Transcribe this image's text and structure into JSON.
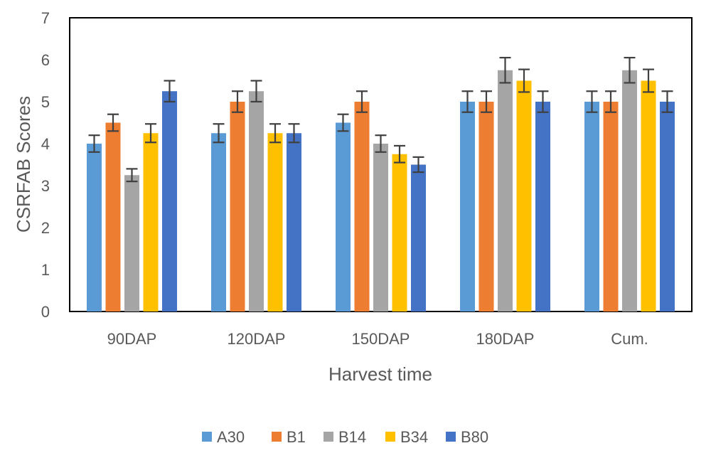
{
  "chart_data": {
    "type": "bar",
    "xlabel": "Harvest time",
    "ylabel": "CSRFAB Scores",
    "ylim": [
      0,
      7
    ],
    "yticks": [
      0,
      1,
      2,
      3,
      4,
      5,
      6,
      7
    ],
    "categories": [
      "90DAP",
      "120DAP",
      "150DAP",
      "180DAP",
      "Cum."
    ],
    "series": [
      {
        "name": "A30",
        "color": "#5B9BD5",
        "values": [
          4.0,
          4.25,
          4.5,
          5.0,
          5.0
        ],
        "errors": [
          0.2,
          0.22,
          0.2,
          0.25,
          0.25
        ]
      },
      {
        "name": "B1",
        "color": "#ED7D31",
        "values": [
          4.5,
          5.0,
          5.0,
          5.0,
          5.0
        ],
        "errors": [
          0.2,
          0.25,
          0.25,
          0.25,
          0.25
        ]
      },
      {
        "name": "B14",
        "color": "#A5A5A5",
        "values": [
          3.25,
          5.25,
          4.0,
          5.75,
          5.75
        ],
        "errors": [
          0.15,
          0.25,
          0.2,
          0.3,
          0.3
        ]
      },
      {
        "name": "B34",
        "color": "#FFC000",
        "values": [
          4.25,
          4.25,
          3.75,
          5.5,
          5.5
        ],
        "errors": [
          0.22,
          0.22,
          0.2,
          0.27,
          0.27
        ]
      },
      {
        "name": "B80",
        "color": "#4472C4",
        "values": [
          5.25,
          4.25,
          3.5,
          5.0,
          5.0
        ],
        "errors": [
          0.25,
          0.22,
          0.18,
          0.25,
          0.25
        ]
      }
    ],
    "error_bars": true,
    "legend_position": "bottom",
    "grid": false
  }
}
